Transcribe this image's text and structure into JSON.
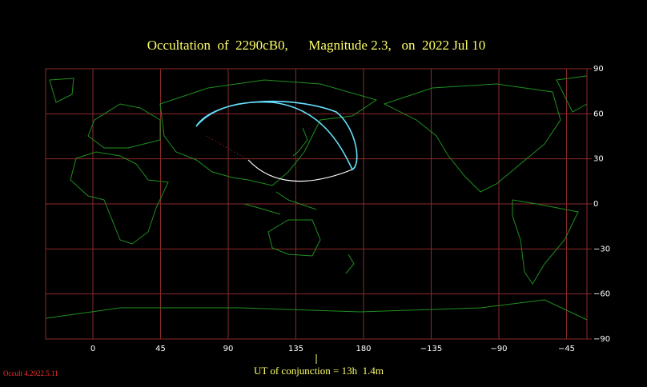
{
  "map": {
    "title": "Occultation  of  2290cB0,      Magnitude 2.3,   on  2022 Jul 10",
    "xticks": [
      0,
      45,
      90,
      135,
      180,
      {
        "value": -135,
        "label": "−135"
      },
      {
        "value": -90,
        "label": "−90"
      },
      {
        "value": -45,
        "label": "−45"
      }
    ],
    "yticks": [
      90,
      60,
      30,
      0,
      {
        "value": -30,
        "label": "−30"
      },
      {
        "value": -60,
        "label": "−60"
      },
      {
        "value": -90,
        "label": "−90"
      }
    ],
    "conjunction": "UT of conjunction = 13h  1.4m",
    "version": "Occult 4.2022.5.11"
  }
}
